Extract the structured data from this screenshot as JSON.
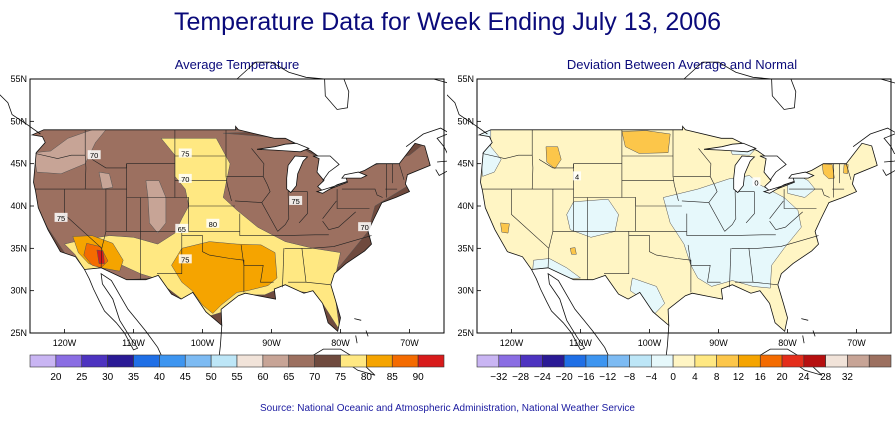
{
  "title": "Temperature Data for Week Ending July 13, 2006",
  "left_map": {
    "subtitle": "Average Temperature",
    "lat_labels": [
      "55N",
      "50N",
      "45N",
      "40N",
      "35N",
      "30N",
      "25N"
    ],
    "lon_labels": [
      "120W",
      "110W",
      "100W",
      "90W",
      "80W",
      "70W"
    ],
    "contour_labels": [
      {
        "text": "70",
        "lon": -115.7,
        "lat": 46
      },
      {
        "text": "75",
        "lon": -102.5,
        "lat": 46.2
      },
      {
        "text": "70",
        "lon": -102.5,
        "lat": 43.2
      },
      {
        "text": "65",
        "lon": -103,
        "lat": 37.3
      },
      {
        "text": "80",
        "lon": -98.5,
        "lat": 37.9
      },
      {
        "text": "75",
        "lon": -86.5,
        "lat": 40.6
      },
      {
        "text": "75",
        "lon": -120.5,
        "lat": 38.6
      },
      {
        "text": "70",
        "lon": -76.5,
        "lat": 37.5
      },
      {
        "text": "75",
        "lon": -102.5,
        "lat": 33.7
      }
    ],
    "legend": {
      "colors": [
        "#c9b5f3",
        "#8a6de3",
        "#4d33c0",
        "#2a1a95",
        "#1f6fe6",
        "#3d95f0",
        "#7dbbf3",
        "#bde6f7",
        "#f1e3d9",
        "#c7a496",
        "#9c7060",
        "#6f4a3e",
        "#ffe882",
        "#f5a400",
        "#f46b00",
        "#d81b1b"
      ],
      "labels": [
        "20",
        "25",
        "30",
        "35",
        "40",
        "45",
        "50",
        "55",
        "60",
        "65",
        "70",
        "75",
        "80",
        "85",
        "90"
      ]
    }
  },
  "right_map": {
    "subtitle": "Deviation Between Average and Normal",
    "lat_labels": [
      "55N",
      "50N",
      "45N",
      "40N",
      "35N",
      "30N",
      "25N"
    ],
    "lon_labels": [
      "120W",
      "110W",
      "100W",
      "90W",
      "80W",
      "70W"
    ],
    "contour_labels": [
      {
        "text": "4",
        "lon": -110.5,
        "lat": 43.5
      },
      {
        "text": "0",
        "lon": -84.5,
        "lat": 42.8
      }
    ],
    "legend": {
      "colors": [
        "#c9b5f3",
        "#8a6de3",
        "#4d33c0",
        "#2a1a95",
        "#1f6fe6",
        "#3d95f0",
        "#7dbbf3",
        "#bde6f7",
        "#e6f8fb",
        "#fff5c4",
        "#ffe882",
        "#fcc64a",
        "#f5a400",
        "#f46b00",
        "#e42d1a",
        "#b60f0f",
        "#f1e3d9",
        "#c7a496",
        "#9c7060"
      ],
      "labels": [
        "−32",
        "−28",
        "−24",
        "−20",
        "−16",
        "−12",
        "−8",
        "−4",
        "0",
        "4",
        "8",
        "12",
        "16",
        "20",
        "24",
        "28",
        "32"
      ]
    }
  },
  "source": "Source:  National Oceanic and Atmospheric Administration, National Weather Service"
}
